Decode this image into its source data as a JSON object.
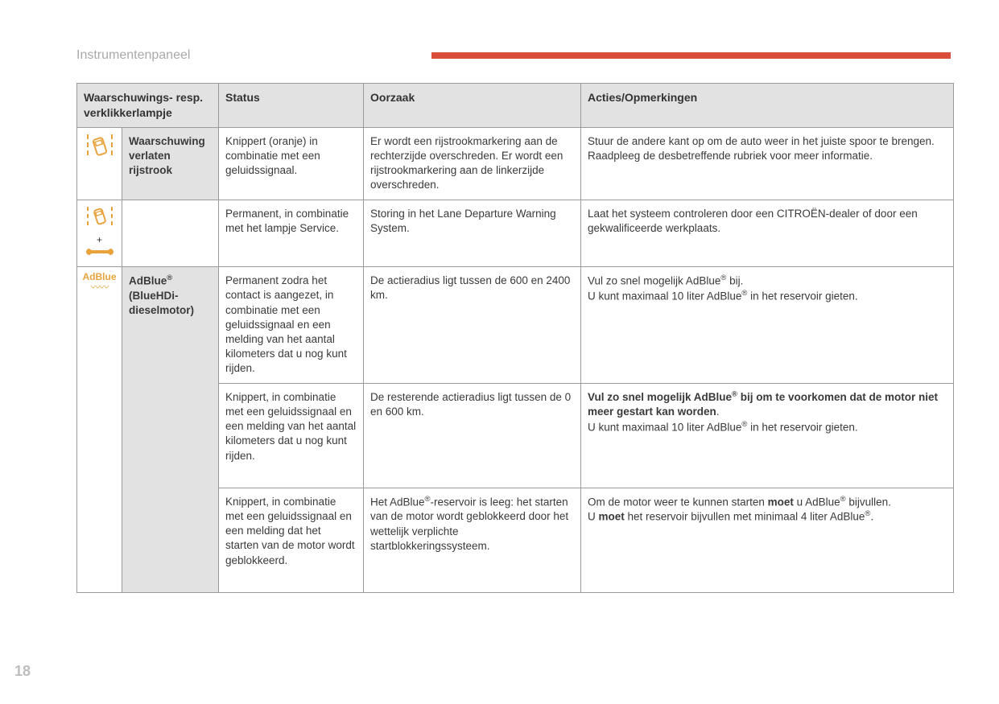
{
  "page": {
    "section_title": "Instrumentenpaneel",
    "number": "18",
    "accent_color": "#d94d3a",
    "icon_color": "#e8a33c"
  },
  "table": {
    "headers": {
      "lamp": "Waarschuwings- resp. verklikkerlampje",
      "status": "Status",
      "cause": "Oorzaak",
      "action": "Acties/Opmerkingen"
    },
    "rows": {
      "r1": {
        "name": "Waarschuwing verlaten rijstrook",
        "status": "Knippert (oranje) in combinatie met een geluidssignaal.",
        "cause": "Er wordt een rijstrookmarkering aan de rechterzijde overschreden.\nEr wordt een rijstrookmarkering aan de linkerzijde overschreden.",
        "action": "Stuur de andere kant op om de auto weer in het juiste spoor te brengen.\nRaadpleeg de desbetreffende rubriek voor meer informatie."
      },
      "r2": {
        "status": "Permanent, in combinatie met het lampje Service.",
        "cause": "Storing in het Lane Departure Warning System.",
        "action": "Laat het systeem controleren door een CITROËN-dealer of door een gekwalificeerde werkplaats."
      },
      "r3": {
        "icon_text": "AdBlue",
        "name_html": "AdBlue<sup>®</sup> (BlueHDi-dieselmotor)",
        "status": "Permanent zodra het contact is aangezet, in combinatie met een geluidssignaal en een melding van het aantal kilometers dat u nog kunt rijden.",
        "cause": "De actieradius ligt tussen de 600 en 2400 km.",
        "action_html": "Vul zo snel mogelijk AdBlue<sup>®</sup> bij.<br>U kunt maximaal 10 liter AdBlue<sup>®</sup> in het reservoir gieten."
      },
      "r4": {
        "status": "Knippert, in combinatie met een geluidssignaal en een melding van het aantal kilometers dat u nog kunt rijden.",
        "cause": "De resterende actieradius ligt tussen de 0 en 600 km.",
        "action_html": "<b>Vul zo snel mogelijk AdBlue<sup>®</sup> bij om te voorkomen dat de motor niet meer gestart kan worden</b>.<br>U kunt maximaal 10 liter AdBlue<sup>®</sup> in het reservoir gieten."
      },
      "r5": {
        "status": "Knippert, in combinatie met een geluidssignaal en een melding dat het starten van de motor wordt geblokkeerd.",
        "cause_html": "Het AdBlue<sup>®</sup>-reservoir is leeg: het starten van de motor wordt geblokkeerd door het wettelijk verplichte startblokkeringssysteem.",
        "action_html": "Om de motor weer te kunnen starten <b>moet</b> u AdBlue<sup>®</sup> bijvullen.<br>U <b>moet</b> het reservoir bijvullen met minimaal 4 liter AdBlue<sup>®</sup>."
      }
    }
  }
}
